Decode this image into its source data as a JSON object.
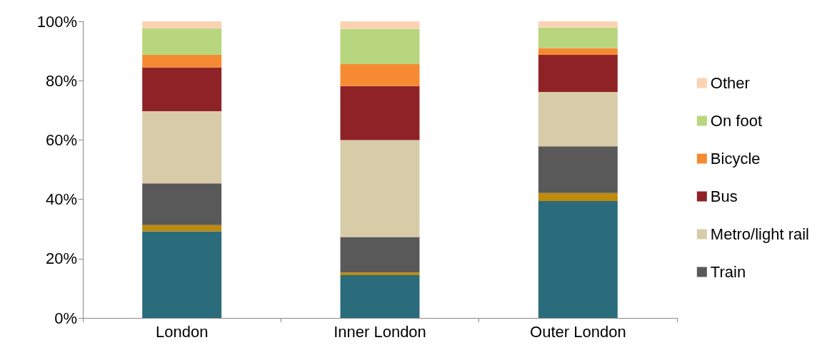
{
  "chart_data": {
    "type": "bar",
    "stacked": true,
    "categories": [
      "London",
      "Inner London",
      "Outer London"
    ],
    "series": [
      {
        "color": "#2a6b7c",
        "values": [
          29.2,
          14.4,
          39.4
        ]
      },
      {
        "color": "#c08a0a",
        "values": [
          2.1,
          0.9,
          2.7
        ]
      },
      {
        "name": "Train",
        "color": "#595959",
        "values": [
          14.1,
          12.0,
          15.8
        ]
      },
      {
        "name": "Metro/light rail",
        "color": "#d8cca8",
        "values": [
          24.3,
          32.7,
          18.3
        ]
      },
      {
        "name": "Bus",
        "color": "#8f2227",
        "values": [
          14.8,
          18.2,
          12.5
        ]
      },
      {
        "name": "Bicycle",
        "color": "#f58a32",
        "values": [
          4.2,
          7.4,
          2.3
        ]
      },
      {
        "name": "On foot",
        "color": "#b8d67e",
        "values": [
          9.0,
          11.9,
          6.9
        ]
      },
      {
        "name": "Other",
        "color": "#fbd3b3",
        "values": [
          2.3,
          2.5,
          2.1
        ]
      }
    ],
    "ylim": [
      0,
      100
    ],
    "yticks": [
      {
        "value": 0,
        "label": "0%"
      },
      {
        "value": 20,
        "label": "20%"
      },
      {
        "value": 40,
        "label": "40%"
      },
      {
        "value": 60,
        "label": "60%"
      },
      {
        "value": 80,
        "label": "80%"
      },
      {
        "value": 100,
        "label": "100%"
      }
    ],
    "grid": false,
    "legend": "right"
  }
}
